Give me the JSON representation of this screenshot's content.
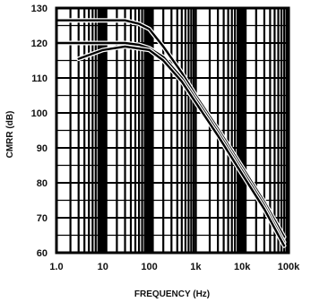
{
  "chart_data": {
    "type": "line",
    "title": "",
    "xlabel": "FREQUENCY (Hz)",
    "ylabel": "CMRR (dB)",
    "x_scale": "log",
    "xlim": [
      1,
      100000
    ],
    "ylim": [
      60,
      130
    ],
    "grid": true,
    "x_ticks": [
      {
        "value": 1,
        "label": "1.0"
      },
      {
        "value": 10,
        "label": "10"
      },
      {
        "value": 100,
        "label": "100"
      },
      {
        "value": 1000,
        "label": "1k"
      },
      {
        "value": 10000,
        "label": "10k"
      },
      {
        "value": 100000,
        "label": "100k"
      }
    ],
    "y_ticks": [
      {
        "value": 60,
        "label": "60"
      },
      {
        "value": 70,
        "label": "70"
      },
      {
        "value": 80,
        "label": "80"
      },
      {
        "value": 90,
        "label": "90"
      },
      {
        "value": 100,
        "label": "100"
      },
      {
        "value": 110,
        "label": "110"
      },
      {
        "value": 120,
        "label": "120"
      },
      {
        "value": 130,
        "label": "130"
      }
    ],
    "series": [
      {
        "points": [
          [
            1,
            126.5
          ],
          [
            10,
            126.5
          ],
          [
            30,
            126.5
          ],
          [
            60,
            125.5
          ],
          [
            100,
            124
          ],
          [
            200,
            119
          ],
          [
            500,
            111.5
          ],
          [
            1000,
            105
          ],
          [
            3000,
            95.5
          ],
          [
            10000,
            84.5
          ],
          [
            30000,
            74.5
          ],
          [
            80000,
            64.5
          ]
        ]
      },
      {
        "points": [
          [
            1,
            120
          ],
          [
            10,
            120
          ],
          [
            30,
            120
          ],
          [
            60,
            119.5
          ],
          [
            100,
            118.5
          ],
          [
            200,
            116
          ],
          [
            500,
            110
          ],
          [
            1000,
            104
          ],
          [
            3000,
            94.5
          ],
          [
            10000,
            83.5
          ],
          [
            30000,
            73.5
          ],
          [
            80000,
            63
          ]
        ]
      },
      {
        "points": [
          [
            3,
            115.5
          ],
          [
            10,
            118
          ],
          [
            30,
            119
          ],
          [
            100,
            118
          ],
          [
            200,
            115
          ],
          [
            500,
            109
          ],
          [
            1000,
            103
          ],
          [
            3000,
            93.5
          ],
          [
            10000,
            82.5
          ],
          [
            30000,
            72.5
          ],
          [
            80000,
            62
          ]
        ]
      }
    ]
  }
}
